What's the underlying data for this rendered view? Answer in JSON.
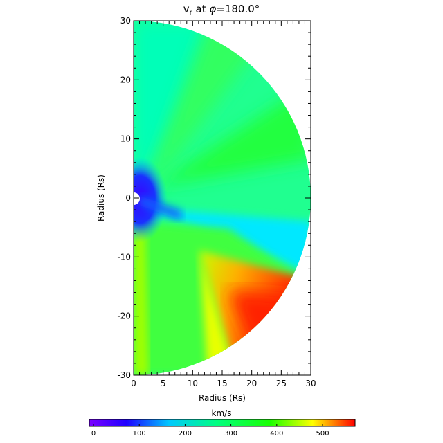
{
  "chart_data": {
    "type": "heatmap",
    "title_main": "v",
    "title_sub": "r",
    "title_at": " at ",
    "title_phi": "φ",
    "title_value": "=180.0°",
    "xlabel": "Radius (Rs)",
    "ylabel": "Radius (Rs)",
    "xlim": [
      0,
      30
    ],
    "ylim": [
      -30,
      30
    ],
    "x_ticks": [
      "0",
      "5",
      "10",
      "15",
      "20",
      "25",
      "30"
    ],
    "y_ticks": [
      "-30",
      "-20",
      "-10",
      "0",
      "10",
      "20",
      "30"
    ],
    "domain_shape": "half-disk, radius 30 Rs",
    "inner_boundary_radius": 1,
    "colorbar": {
      "label": "km/s",
      "min": 0,
      "max": 580,
      "ticks": [
        "0",
        "100",
        "200",
        "300",
        "400",
        "500"
      ],
      "colormap": "rainbow"
    },
    "features": [
      {
        "region": "low-speed core near the origin",
        "value_kms": 80
      },
      {
        "region": "slow stream band toward lower-right",
        "value_kms": 210
      },
      {
        "region": "fast wedge, lower half, r 12–30",
        "value_kms": 560
      },
      {
        "region": "background",
        "value_kms": 330
      }
    ]
  }
}
